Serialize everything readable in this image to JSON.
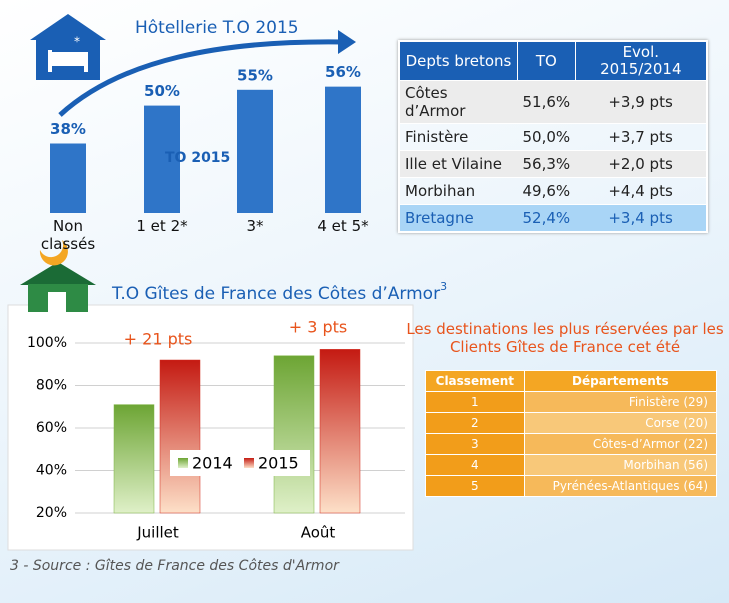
{
  "chart_data": [
    {
      "type": "bar",
      "title": "Hôtellerie T.O 2015",
      "categories": [
        "Non classés",
        "1 et 2*",
        "3*",
        "4 et 5*"
      ],
      "series": [
        {
          "name": "TO 2015",
          "color": "#2f75c8",
          "values": [
            38,
            50,
            55,
            56
          ],
          "value_labels": [
            "38%",
            "50%",
            "55%",
            "56%"
          ]
        }
      ],
      "ylim": [
        16,
        60
      ]
    },
    {
      "type": "bar",
      "title": "T.O Gîtes de France des Côtes d’Armor",
      "title_footnote": "3",
      "categories": [
        "Juillet",
        "Août"
      ],
      "series": [
        {
          "name": "2014",
          "color": "#7cb342",
          "values": [
            71,
            94
          ]
        },
        {
          "name": "2015",
          "color": "#d42a1e",
          "values": [
            92,
            97
          ]
        }
      ],
      "annotations": [
        "+ 21 pts",
        "+ 3 pts"
      ],
      "ylim": [
        20,
        100
      ],
      "yticks": [
        {
          "value": 20,
          "label": "20%"
        },
        {
          "value": 40,
          "label": "40%"
        },
        {
          "value": 60,
          "label": "60%"
        },
        {
          "value": 80,
          "label": "80%"
        },
        {
          "value": 100,
          "label": "100%"
        }
      ],
      "grid": true
    }
  ],
  "table1": {
    "headers": [
      "Depts bretons",
      "TO",
      "Evol. 2015/2014"
    ],
    "rows": [
      [
        "Côtes d’Armor",
        "51,6%",
        "+3,9 pts"
      ],
      [
        "Finistère",
        "50,0%",
        "+3,7 pts"
      ],
      [
        "Ille et Vilaine",
        "56,3%",
        "+2,0 pts"
      ],
      [
        "Morbihan",
        "49,6%",
        "+4,4 pts"
      ],
      [
        "Bretagne",
        "52,4%",
        "+3,4 pts"
      ]
    ]
  },
  "table2": {
    "title": "Les destinations les plus réservées par les Clients Gîtes de France cet été",
    "headers": [
      "Classement",
      "Départements"
    ],
    "rows": [
      [
        "1",
        "Finistère (29)"
      ],
      [
        "2",
        "Corse (20)"
      ],
      [
        "3",
        "Côtes-d’Armor (22)"
      ],
      [
        "4",
        "Morbihan (56)"
      ],
      [
        "5",
        "Pyrénées-Atlantiques (64)"
      ]
    ]
  },
  "source": "3 - Source : Gîtes de France des Côtes d'Armor"
}
